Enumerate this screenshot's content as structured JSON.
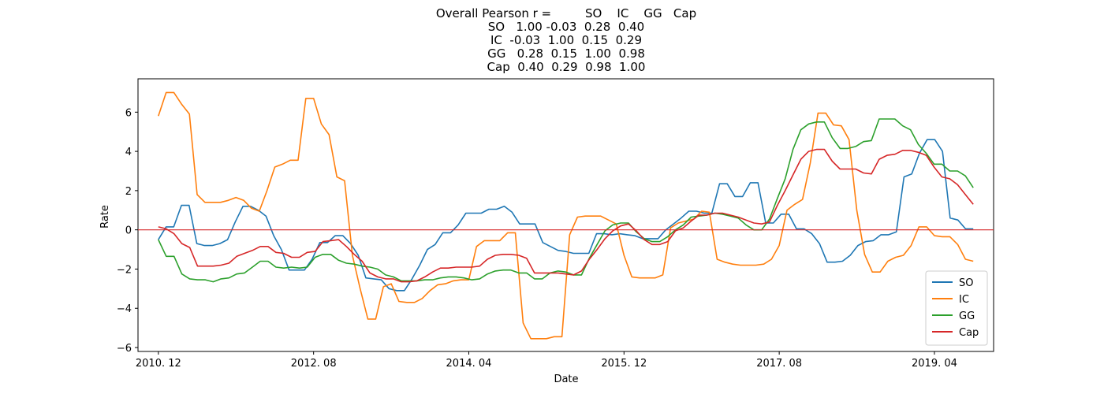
{
  "chart_data": {
    "type": "line",
    "title_lines": [
      "Overall Pearson r =         SO    IC    GG   Cap",
      "SO   1.00 -0.03  0.28  0.40",
      "IC  -0.03  1.00  0.15  0.29",
      "GG   0.28  0.15  1.00  0.98",
      "Cap  0.40  0.29  0.98  1.00"
    ],
    "xlabel": "Date",
    "ylabel": "Rate",
    "x_start": "2010-12",
    "x_end": "2019-09",
    "ylim": [
      -6.2,
      7.7
    ],
    "x_ticks": [
      {
        "date": "2010-12",
        "label": "2010. 12"
      },
      {
        "date": "2012-08",
        "label": "2012. 08"
      },
      {
        "date": "2014-04",
        "label": "2014. 04"
      },
      {
        "date": "2015-12",
        "label": "2015. 12"
      },
      {
        "date": "2017-08",
        "label": "2017. 08"
      },
      {
        "date": "2019-04",
        "label": "2019. 04"
      }
    ],
    "y_ticks": [
      6,
      4,
      2,
      0,
      -2,
      -4,
      -6
    ],
    "hline": {
      "y": 0,
      "color": "#d62728"
    },
    "grid": false,
    "legend_position": "lower right",
    "series": [
      {
        "name": "SO",
        "color": "#1f77b4",
        "values": [
          -0.5,
          0.15,
          0.15,
          1.25,
          1.25,
          -0.7,
          -0.8,
          -0.8,
          -0.7,
          -0.5,
          0.4,
          1.2,
          1.2,
          1.0,
          0.7,
          -0.3,
          -1.0,
          -2.05,
          -2.05,
          -2.05,
          -1.5,
          -0.65,
          -0.65,
          -0.3,
          -0.3,
          -0.7,
          -1.3,
          -2.45,
          -2.5,
          -2.55,
          -3.0,
          -3.1,
          -3.1,
          -2.5,
          -1.8,
          -1.0,
          -0.75,
          -0.15,
          -0.15,
          0.25,
          0.85,
          0.85,
          0.85,
          1.05,
          1.05,
          1.2,
          0.9,
          0.3,
          0.3,
          0.3,
          -0.65,
          -0.85,
          -1.05,
          -1.1,
          -1.2,
          -1.2,
          -1.2,
          -0.2,
          -0.2,
          -0.25,
          -0.2,
          -0.25,
          -0.3,
          -0.45,
          -0.45,
          -0.45,
          0.0,
          0.3,
          0.6,
          0.95,
          0.95,
          0.85,
          0.85,
          2.35,
          2.35,
          1.7,
          1.7,
          2.4,
          2.4,
          0.35,
          0.35,
          0.8,
          0.8,
          0.05,
          0.05,
          -0.2,
          -0.7,
          -1.65,
          -1.65,
          -1.6,
          -1.3,
          -0.8,
          -0.6,
          -0.55,
          -0.25,
          -0.25,
          -0.1,
          2.7,
          2.85,
          3.9,
          4.6,
          4.6,
          4.0,
          0.6,
          0.5,
          0.05,
          0.05
        ]
      },
      {
        "name": "IC",
        "color": "#ff7f0e",
        "values": [
          5.8,
          7.0,
          7.0,
          6.4,
          5.9,
          1.8,
          1.4,
          1.4,
          1.4,
          1.5,
          1.65,
          1.5,
          1.1,
          0.95,
          2.0,
          3.2,
          3.35,
          3.55,
          3.55,
          6.7,
          6.7,
          5.4,
          4.85,
          2.7,
          2.5,
          -1.3,
          -3.0,
          -4.55,
          -4.55,
          -2.9,
          -2.75,
          -3.65,
          -3.7,
          -3.7,
          -3.5,
          -3.1,
          -2.8,
          -2.75,
          -2.6,
          -2.55,
          -2.55,
          -0.85,
          -0.55,
          -0.55,
          -0.55,
          -0.15,
          -0.15,
          -4.75,
          -5.55,
          -5.55,
          -5.55,
          -5.45,
          -5.45,
          -0.25,
          0.65,
          0.7,
          0.7,
          0.7,
          0.5,
          0.3,
          -1.3,
          -2.4,
          -2.45,
          -2.45,
          -2.45,
          -2.3,
          0.1,
          0.35,
          0.45,
          0.55,
          0.95,
          0.9,
          -1.5,
          -1.65,
          -1.75,
          -1.8,
          -1.8,
          -1.8,
          -1.75,
          -1.5,
          -0.8,
          1.0,
          1.3,
          1.55,
          3.4,
          5.95,
          5.95,
          5.35,
          5.3,
          4.6,
          1.0,
          -1.25,
          -2.15,
          -2.15,
          -1.6,
          -1.4,
          -1.3,
          -0.8,
          0.15,
          0.15,
          -0.3,
          -0.35,
          -0.35,
          -0.75,
          -1.5,
          -1.6
        ]
      },
      {
        "name": "GG",
        "color": "#2ca02c",
        "values": [
          -0.5,
          -1.35,
          -1.35,
          -2.25,
          -2.5,
          -2.55,
          -2.55,
          -2.65,
          -2.5,
          -2.45,
          -2.25,
          -2.2,
          -1.9,
          -1.6,
          -1.6,
          -1.9,
          -1.95,
          -1.9,
          -1.95,
          -1.9,
          -1.4,
          -1.25,
          -1.25,
          -1.55,
          -1.7,
          -1.75,
          -1.85,
          -1.9,
          -2.0,
          -2.3,
          -2.4,
          -2.6,
          -2.6,
          -2.6,
          -2.55,
          -2.55,
          -2.45,
          -2.4,
          -2.4,
          -2.45,
          -2.55,
          -2.5,
          -2.25,
          -2.1,
          -2.05,
          -2.05,
          -2.2,
          -2.2,
          -2.5,
          -2.5,
          -2.2,
          -2.1,
          -2.15,
          -2.3,
          -2.3,
          -1.45,
          -0.75,
          -0.05,
          0.25,
          0.35,
          0.35,
          -0.1,
          -0.45,
          -0.6,
          -0.6,
          -0.35,
          0.0,
          0.25,
          0.65,
          0.7,
          0.75,
          0.85,
          0.8,
          0.7,
          0.6,
          0.25,
          0.0,
          0.0,
          0.55,
          1.6,
          2.6,
          4.1,
          5.1,
          5.4,
          5.5,
          5.5,
          4.7,
          4.15,
          4.15,
          4.25,
          4.5,
          4.55,
          5.65,
          5.65,
          5.65,
          5.3,
          5.1,
          4.35,
          3.9,
          3.35,
          3.35,
          3.0,
          3.0,
          2.75,
          2.15
        ]
      },
      {
        "name": "Cap",
        "color": "#d62728",
        "values": [
          0.15,
          0.05,
          -0.2,
          -0.7,
          -0.9,
          -1.85,
          -1.85,
          -1.85,
          -1.8,
          -1.7,
          -1.35,
          -1.2,
          -1.05,
          -0.85,
          -0.85,
          -1.15,
          -1.2,
          -1.4,
          -1.4,
          -1.15,
          -1.1,
          -0.6,
          -0.55,
          -0.5,
          -0.85,
          -1.25,
          -1.6,
          -2.2,
          -2.4,
          -2.5,
          -2.5,
          -2.65,
          -2.65,
          -2.6,
          -2.4,
          -2.15,
          -1.95,
          -1.95,
          -1.9,
          -1.9,
          -1.9,
          -1.85,
          -1.5,
          -1.3,
          -1.25,
          -1.25,
          -1.3,
          -1.45,
          -2.2,
          -2.2,
          -2.2,
          -2.2,
          -2.25,
          -2.3,
          -2.1,
          -1.5,
          -1.0,
          -0.45,
          -0.05,
          0.2,
          0.3,
          -0.05,
          -0.5,
          -0.75,
          -0.75,
          -0.6,
          -0.05,
          0.1,
          0.45,
          0.75,
          0.75,
          0.85,
          0.85,
          0.75,
          0.65,
          0.5,
          0.35,
          0.3,
          0.4,
          1.25,
          2.0,
          2.8,
          3.6,
          4.0,
          4.1,
          4.1,
          3.5,
          3.1,
          3.1,
          3.1,
          2.9,
          2.85,
          3.6,
          3.8,
          3.85,
          4.05,
          4.05,
          3.95,
          3.8,
          3.2,
          2.7,
          2.6,
          2.3,
          1.8,
          1.3
        ]
      }
    ]
  }
}
